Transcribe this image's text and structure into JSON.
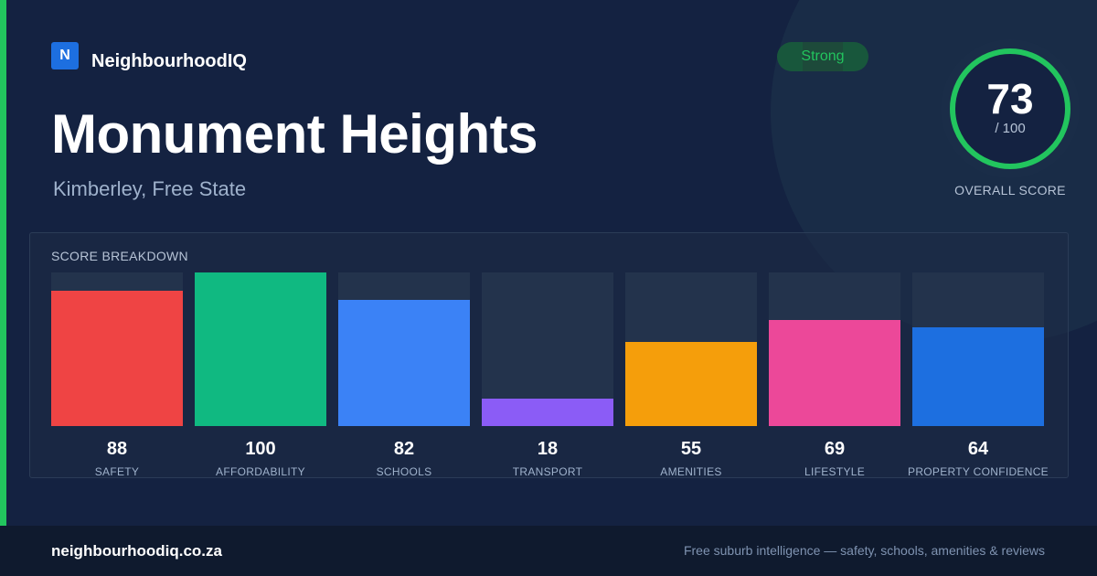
{
  "brand": {
    "logo_letter": "N",
    "name": "NeighbourhoodIQ"
  },
  "suburb": {
    "name": "Monument Heights",
    "location": "Kimberley, Free State"
  },
  "badge": {
    "label": "Strong",
    "color": "#22c55e"
  },
  "overall": {
    "score": "73",
    "max": "/ 100",
    "label": "OVERALL SCORE",
    "value": 73,
    "ring_color": "#22c55e"
  },
  "breakdown": {
    "title": "SCORE BREAKDOWN",
    "items": [
      {
        "label": "SAFETY",
        "value": 88,
        "color": "#ef4444"
      },
      {
        "label": "AFFORDABILITY",
        "value": 100,
        "color": "#10b981"
      },
      {
        "label": "SCHOOLS",
        "value": 82,
        "color": "#3b82f6"
      },
      {
        "label": "TRANSPORT",
        "value": 18,
        "color": "#8b5cf6"
      },
      {
        "label": "AMENITIES",
        "value": 55,
        "color": "#f59e0b"
      },
      {
        "label": "LIFESTYLE",
        "value": 69,
        "color": "#ec4899"
      },
      {
        "label": "PROPERTY CONFIDENCE",
        "value": 64,
        "color": "#1d6fe0"
      }
    ]
  },
  "chart_data": {
    "type": "bar",
    "title": "SCORE BREAKDOWN",
    "categories": [
      "SAFETY",
      "AFFORDABILITY",
      "SCHOOLS",
      "TRANSPORT",
      "AMENITIES",
      "LIFESTYLE",
      "PROPERTY CONFIDENCE"
    ],
    "values": [
      88,
      100,
      82,
      18,
      55,
      69,
      64
    ],
    "ylim": [
      0,
      100
    ],
    "grid": false
  },
  "footer": {
    "url": "neighbourhoodiq.co.za",
    "tagline": "Free suburb intelligence — safety, schools, amenities & reviews"
  }
}
